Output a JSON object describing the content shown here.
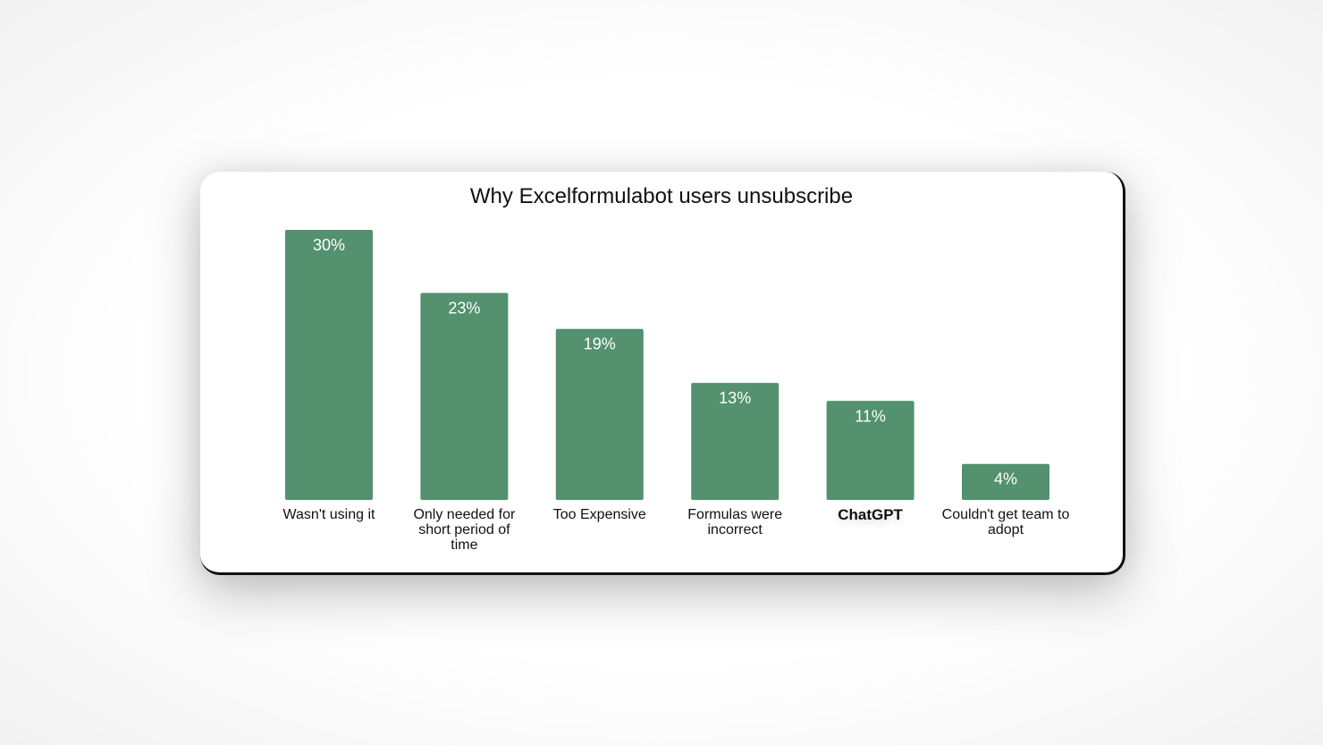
{
  "chart_data": {
    "type": "bar",
    "title": "Why Excelformulabot users unsubscribe",
    "categories": [
      "Wasn't using it",
      "Only needed for short period of time",
      "Too Expensive",
      "Formulas were incorrect",
      "ChatGPT",
      "Couldn't get team to adopt"
    ],
    "values": [
      30,
      23,
      19,
      13,
      11,
      4
    ],
    "data_labels": [
      "30%",
      "23%",
      "19%",
      "13%",
      "11%",
      "4%"
    ],
    "xlabel": "",
    "ylabel": "",
    "ylim": [
      0,
      30
    ],
    "grid": false,
    "bar_color": "#53916f",
    "emphasized_category": "ChatGPT"
  }
}
